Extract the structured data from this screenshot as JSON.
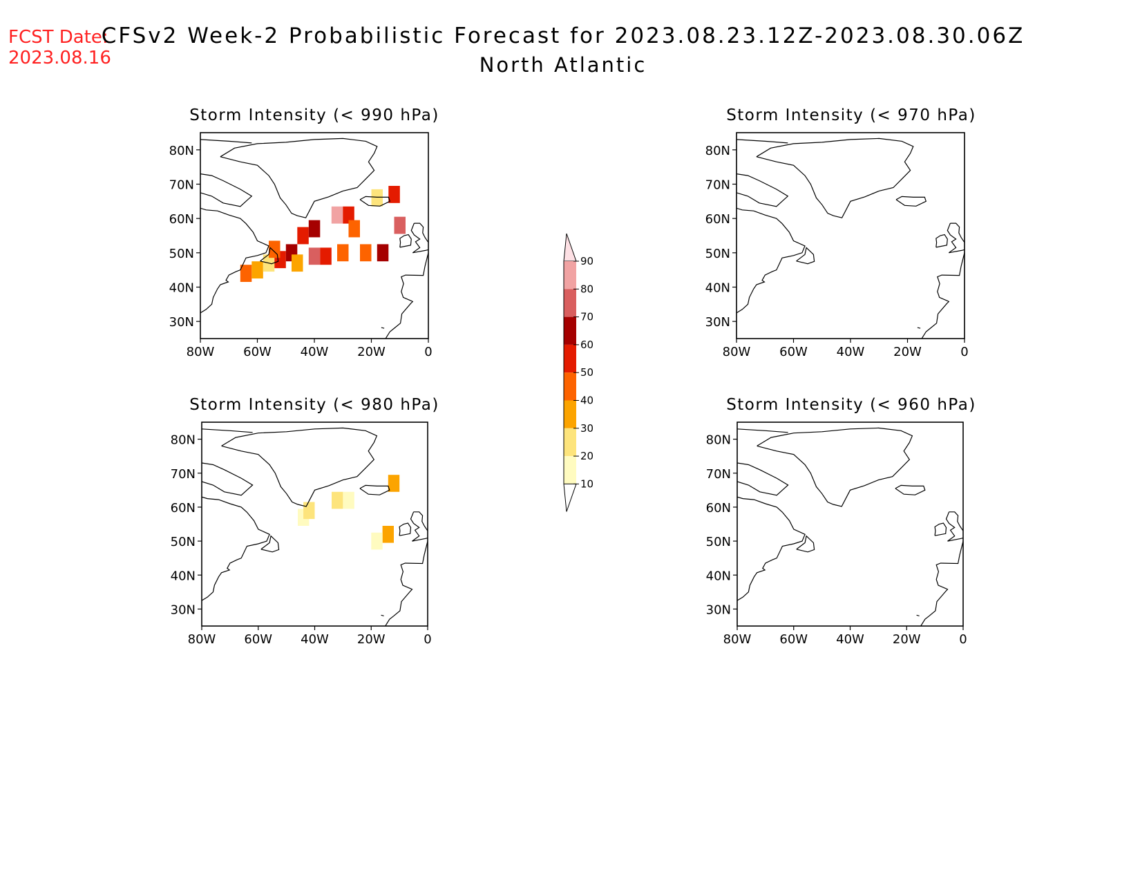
{
  "header": {
    "fcst_label": "FCST Date:",
    "fcst_date": "2023.08.16",
    "title": "CFSv2 Week-2 Probabilistic Forecast for 2023.08.23.12Z-2023.08.30.06Z",
    "subtitle": "North Atlantic"
  },
  "colors": {
    "fcst": "#ff2020",
    "text": "#000000",
    "scale": [
      "#fffbc0",
      "#fde47c",
      "#fca400",
      "#fd6300",
      "#e41b00",
      "#a50000",
      "#d95f5f",
      "#f1a3a3",
      "#fde0e4"
    ]
  },
  "axes": {
    "lon_ticks": [
      "80W",
      "60W",
      "40W",
      "20W",
      "0"
    ],
    "lat_ticks": [
      "80N",
      "70N",
      "60N",
      "50N",
      "40N",
      "30N"
    ]
  },
  "colorbar": {
    "levels": [
      "90",
      "80",
      "70",
      "60",
      "50",
      "40",
      "30",
      "20",
      "10"
    ]
  },
  "panels": [
    {
      "title": "Storm Intensity (< 990 hPa)",
      "cells": [
        {
          "lon": -64,
          "lat": 44,
          "p": 40
        },
        {
          "lon": -60,
          "lat": 45,
          "p": 30
        },
        {
          "lon": -56,
          "lat": 47,
          "p": 20
        },
        {
          "lon": -52,
          "lat": 48,
          "p": 50
        },
        {
          "lon": -54,
          "lat": 51,
          "p": 40
        },
        {
          "lon": -48,
          "lat": 50,
          "p": 60
        },
        {
          "lon": -46,
          "lat": 47,
          "p": 30
        },
        {
          "lon": -44,
          "lat": 55,
          "p": 50
        },
        {
          "lon": -40,
          "lat": 57,
          "p": 60
        },
        {
          "lon": -40,
          "lat": 49,
          "p": 70
        },
        {
          "lon": -36,
          "lat": 49,
          "p": 50
        },
        {
          "lon": -32,
          "lat": 61,
          "p": 80
        },
        {
          "lon": -28,
          "lat": 61,
          "p": 50
        },
        {
          "lon": -26,
          "lat": 57,
          "p": 40
        },
        {
          "lon": -30,
          "lat": 50,
          "p": 40
        },
        {
          "lon": -22,
          "lat": 50,
          "p": 40
        },
        {
          "lon": -16,
          "lat": 50,
          "p": 60
        },
        {
          "lon": -10,
          "lat": 58,
          "p": 70
        },
        {
          "lon": -12,
          "lat": 67,
          "p": 50
        },
        {
          "lon": -18,
          "lat": 66,
          "p": 20
        }
      ]
    },
    {
      "title": "Storm Intensity (< 980 hPa)",
      "cells": [
        {
          "lon": -44,
          "lat": 57,
          "p": 10
        },
        {
          "lon": -42,
          "lat": 59,
          "p": 20
        },
        {
          "lon": -32,
          "lat": 62,
          "p": 20
        },
        {
          "lon": -28,
          "lat": 62,
          "p": 10
        },
        {
          "lon": -12,
          "lat": 67,
          "p": 30
        },
        {
          "lon": -14,
          "lat": 52,
          "p": 30
        },
        {
          "lon": -18,
          "lat": 50,
          "p": 10
        }
      ]
    },
    {
      "title": "Storm Intensity (< 970 hPa)",
      "cells": []
    },
    {
      "title": "Storm Intensity (< 960 hPa)",
      "cells": []
    }
  ]
}
